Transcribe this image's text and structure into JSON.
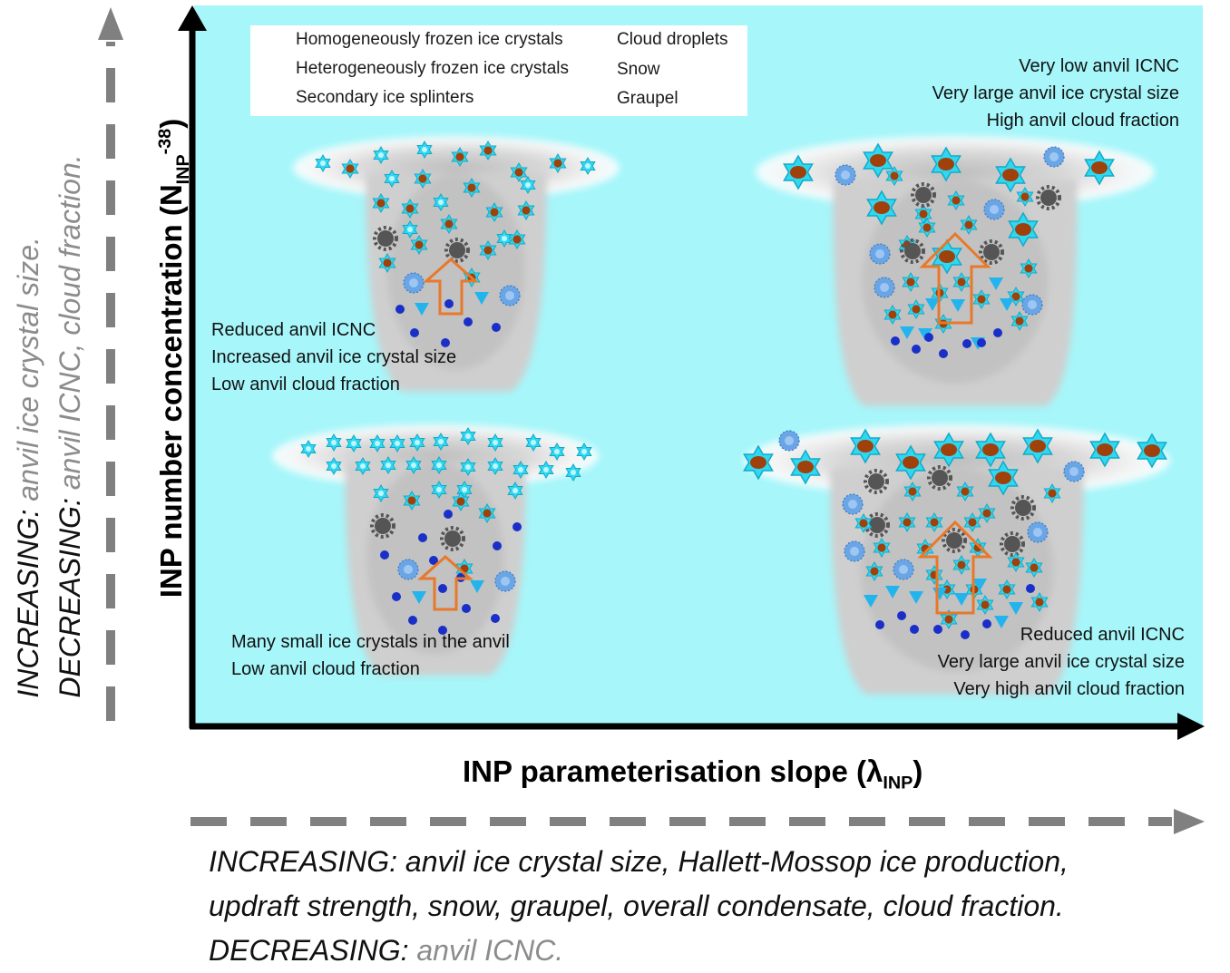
{
  "legend": {
    "homogeneous": "Homogeneously frozen ice crystals",
    "heterogeneous": "Heterogeneously frozen ice crystals",
    "splinters": "Secondary ice splinters",
    "droplets": "Cloud droplets",
    "snow": "Snow",
    "graupel": "Graupel"
  },
  "quadrants": {
    "top_left": [
      "Reduced anvil ICNC",
      "Increased anvil ice crystal size",
      "Low anvil cloud fraction"
    ],
    "top_right": [
      "Very low anvil ICNC",
      "Very large anvil ice crystal size",
      "High anvil cloud fraction"
    ],
    "bottom_left": [
      "Many small ice crystals in the anvil",
      "Low anvil cloud fraction"
    ],
    "bottom_right": [
      "Reduced anvil ICNC",
      "Very large anvil ice crystal size",
      "Very high anvil cloud fraction"
    ]
  },
  "axes": {
    "x_label": "INP parameterisation slope (λ",
    "x_sub": "INP",
    "x_close": ")",
    "y_label": "INP number concentration (N",
    "y_sub": "INP",
    "y_sup": "-38",
    "y_close": ")"
  },
  "x_trend": {
    "inc_label": "INCREASING:",
    "inc_line1": "anvil ice crystal size, Hallett-Mossop ice production,",
    "inc_line2": "updraft strength, snow, graupel, overall condensate, cloud fraction.",
    "dec_label": "DECREASING:",
    "dec_value": "anvil ICNC."
  },
  "y_trend": {
    "inc_label": "INCREASING:",
    "inc_value": "anvil ice crystal size.",
    "dec_label": "DECREASING:",
    "dec_value": "anvil ICNC, cloud fraction."
  },
  "colors": {
    "panel_bg": "#a6f6fa",
    "ice_cyan": "#2fd8f0",
    "nucleus_brown": "#a0400a",
    "droplet_blue": "#1a2fc8",
    "splinter_blue": "#22b4ec",
    "snow_blue": "#6aa6e6",
    "graupel_grey": "#555555",
    "updraft_orange": "#e8782a",
    "trend_arrow_grey": "#808080"
  }
}
